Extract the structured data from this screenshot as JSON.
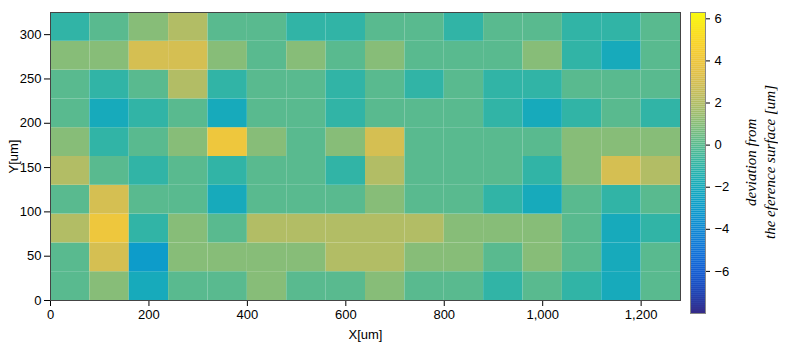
{
  "chart_data": {
    "type": "heatmap",
    "xlabel": "X[um]",
    "ylabel": "Y[um]",
    "xlim": [
      0,
      1280
    ],
    "ylim": [
      0,
      325
    ],
    "xticks": [
      0,
      200,
      400,
      600,
      800,
      1000,
      1200
    ],
    "yticks": [
      0,
      50,
      100,
      150,
      200,
      250,
      300
    ],
    "x_edges": [
      0,
      80,
      160,
      240,
      320,
      400,
      480,
      560,
      640,
      720,
      800,
      880,
      960,
      1040,
      1120,
      1200,
      1280
    ],
    "y_edges": [
      0,
      32.5,
      65,
      97.5,
      130,
      162.5,
      195,
      227.5,
      260,
      292.5,
      325
    ],
    "z": [
      [
        0,
        1,
        -2,
        0,
        0,
        1,
        0,
        0,
        1,
        0,
        0,
        -1,
        0,
        -1,
        -2,
        0
      ],
      [
        0,
        3,
        -3,
        1,
        1,
        1,
        1,
        2,
        2,
        1,
        1,
        0,
        1,
        0,
        -2,
        0
      ],
      [
        2,
        4,
        -1,
        1,
        0,
        2,
        2,
        2,
        2,
        2,
        1,
        1,
        1,
        0,
        -2,
        -1
      ],
      [
        0,
        3,
        0,
        0,
        -2,
        0,
        0,
        0,
        1,
        0,
        0,
        -1,
        -2,
        0,
        -1,
        0
      ],
      [
        2,
        0,
        -1,
        0,
        -1,
        0,
        0,
        -1,
        2,
        0,
        0,
        0,
        -1,
        1,
        3,
        2
      ],
      [
        1,
        -1,
        0,
        1,
        4,
        1,
        0,
        1,
        3,
        0,
        0,
        0,
        0,
        1,
        1,
        1
      ],
      [
        0,
        -2,
        -1,
        0,
        -2,
        0,
        0,
        -1,
        0,
        0,
        0,
        -1,
        -2,
        -1,
        0,
        -1
      ],
      [
        0,
        -1,
        0,
        2,
        -1,
        0,
        0,
        -1,
        0,
        -1,
        0,
        -1,
        -1,
        0,
        0,
        0
      ],
      [
        1,
        1,
        3,
        3,
        1,
        0,
        1,
        0,
        1,
        0,
        0,
        0,
        1,
        -1,
        -2,
        0
      ],
      [
        -1,
        0,
        1,
        2,
        0,
        0,
        -1,
        -1,
        0,
        0,
        -1,
        0,
        0,
        -1,
        -1,
        0
      ]
    ],
    "colorbar": {
      "range": [
        -8,
        6.3
      ],
      "ticks": [
        -6,
        -4,
        -2,
        0,
        2,
        4,
        6
      ],
      "label": [
        "deviation from",
        "the eference surface [um]"
      ]
    }
  }
}
